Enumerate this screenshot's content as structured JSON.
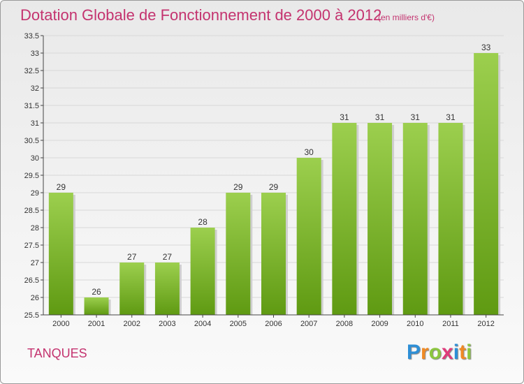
{
  "header": {
    "title": "Dotation Globale de Fonctionnement de 2000 à 2012",
    "unit": "(en milliers d'€)"
  },
  "footer": {
    "commune": "TANQUES"
  },
  "logo": {
    "text": "Proxiti",
    "letters": [
      {
        "char": "P",
        "color": "#2e8fd6"
      },
      {
        "char": "r",
        "color": "#f08a24"
      },
      {
        "char": "o",
        "color": "#8cc63f"
      },
      {
        "char": "x",
        "color": "#e03a7a"
      },
      {
        "char": "i",
        "color": "#2e8fd6"
      },
      {
        "char": "t",
        "color": "#f08a24"
      },
      {
        "char": "i",
        "color": "#8cc63f"
      }
    ]
  },
  "colors": {
    "accent": "#c4336f",
    "bar_light": "#9ccf4e",
    "bar_dark": "#5f9a12",
    "grid": "#d8d8d8",
    "axis": "#444444"
  },
  "chart_data": {
    "type": "bar",
    "categories": [
      "2000",
      "2001",
      "2002",
      "2003",
      "2004",
      "2005",
      "2006",
      "2007",
      "2008",
      "2009",
      "2010",
      "2011",
      "2012"
    ],
    "values": [
      29,
      26,
      27,
      27,
      28,
      29,
      29,
      30,
      31,
      31,
      31,
      31,
      33
    ],
    "ylim": [
      25.5,
      33.5
    ],
    "yticks": [
      "25.5",
      "26",
      "26.5",
      "27",
      "27.5",
      "28",
      "28.5",
      "29",
      "29.5",
      "30",
      "30.5",
      "31",
      "31.5",
      "32",
      "32.5",
      "33",
      "33.5"
    ],
    "grid": true,
    "legend": "none",
    "xlabel": "",
    "ylabel": ""
  }
}
